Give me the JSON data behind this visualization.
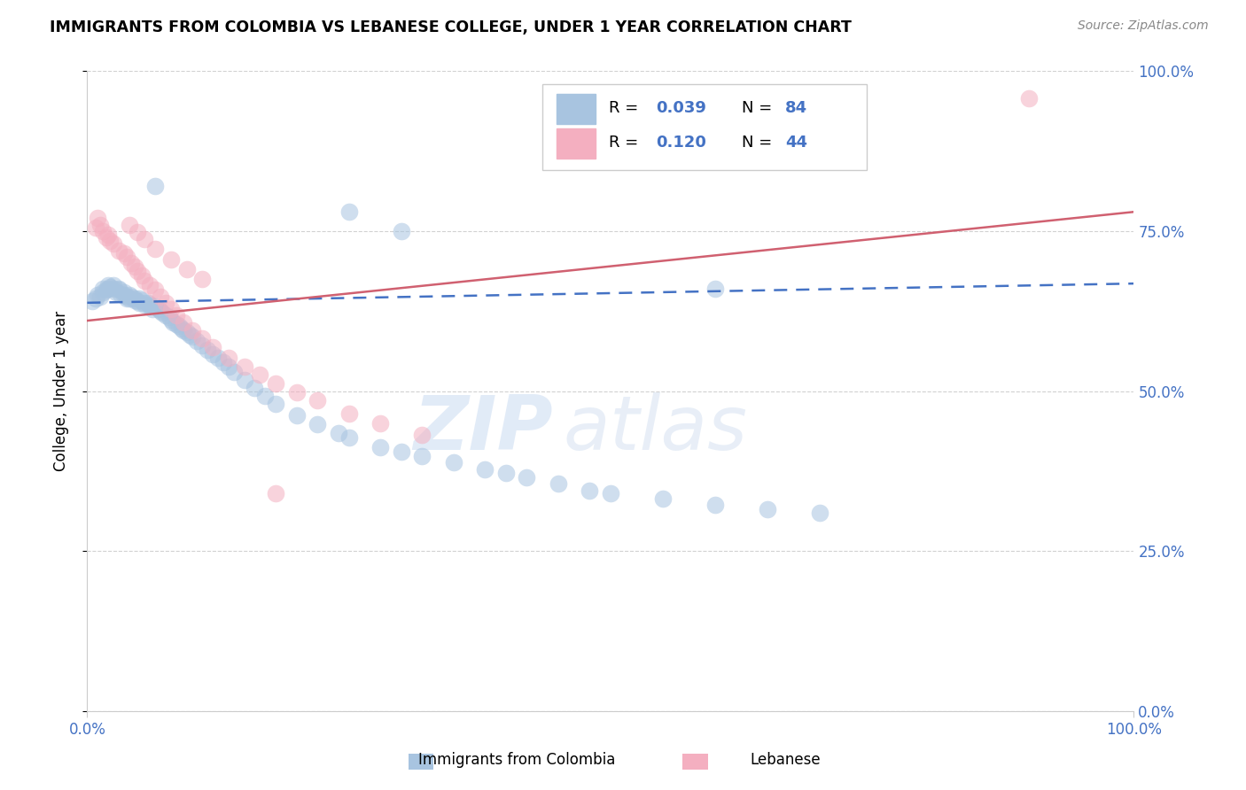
{
  "title": "IMMIGRANTS FROM COLOMBIA VS LEBANESE COLLEGE, UNDER 1 YEAR CORRELATION CHART",
  "source": "Source: ZipAtlas.com",
  "ylabel": "College, Under 1 year",
  "watermark_zip": "ZIP",
  "watermark_atlas": "atlas",
  "legend_blue_r": "0.039",
  "legend_blue_n": "84",
  "legend_pink_r": "0.120",
  "legend_pink_n": "44",
  "legend_blue_label": "Immigrants from Colombia",
  "legend_pink_label": "Lebanese",
  "blue_color": "#a8c4e0",
  "pink_color": "#f4afc0",
  "blue_line_color": "#4472c4",
  "pink_line_color": "#d06070",
  "grid_color": "#cccccc",
  "text_blue": "#4472c4",
  "blue_trend_x": [
    0.0,
    1.0
  ],
  "blue_trend_y": [
    0.638,
    0.668
  ],
  "pink_trend_x": [
    0.0,
    1.0
  ],
  "pink_trend_y": [
    0.61,
    0.78
  ],
  "ytick_vals": [
    0.0,
    0.25,
    0.5,
    0.75,
    1.0
  ],
  "ytick_labels": [
    "0.0%",
    "25.0%",
    "50.0%",
    "75.0%",
    "100.0%"
  ],
  "xtick_vals": [
    0.0,
    1.0
  ],
  "xtick_labels": [
    "0.0%",
    "100.0%"
  ],
  "blue_x": [
    0.005,
    0.008,
    0.01,
    0.012,
    0.015,
    0.015,
    0.018,
    0.02,
    0.02,
    0.022,
    0.025,
    0.025,
    0.028,
    0.03,
    0.03,
    0.032,
    0.035,
    0.035,
    0.038,
    0.038,
    0.04,
    0.04,
    0.042,
    0.045,
    0.045,
    0.048,
    0.05,
    0.05,
    0.052,
    0.055,
    0.055,
    0.058,
    0.06,
    0.06,
    0.062,
    0.065,
    0.068,
    0.07,
    0.072,
    0.075,
    0.078,
    0.08,
    0.082,
    0.085,
    0.088,
    0.09,
    0.092,
    0.095,
    0.098,
    0.1,
    0.105,
    0.11,
    0.115,
    0.12,
    0.125,
    0.13,
    0.135,
    0.14,
    0.15,
    0.16,
    0.17,
    0.18,
    0.2,
    0.22,
    0.24,
    0.25,
    0.28,
    0.3,
    0.32,
    0.35,
    0.38,
    0.4,
    0.42,
    0.45,
    0.48,
    0.5,
    0.55,
    0.6,
    0.65,
    0.7,
    0.25,
    0.3,
    0.065,
    0.6
  ],
  "blue_y": [
    0.64,
    0.645,
    0.65,
    0.648,
    0.655,
    0.66,
    0.658,
    0.66,
    0.665,
    0.662,
    0.665,
    0.66,
    0.655,
    0.66,
    0.658,
    0.652,
    0.655,
    0.65,
    0.648,
    0.645,
    0.65,
    0.645,
    0.648,
    0.645,
    0.642,
    0.64,
    0.645,
    0.638,
    0.642,
    0.638,
    0.635,
    0.638,
    0.632,
    0.635,
    0.628,
    0.632,
    0.628,
    0.625,
    0.622,
    0.618,
    0.615,
    0.612,
    0.608,
    0.605,
    0.602,
    0.598,
    0.595,
    0.592,
    0.588,
    0.585,
    0.578,
    0.572,
    0.565,
    0.558,
    0.552,
    0.545,
    0.538,
    0.53,
    0.518,
    0.505,
    0.492,
    0.48,
    0.462,
    0.448,
    0.435,
    0.428,
    0.412,
    0.405,
    0.398,
    0.388,
    0.378,
    0.372,
    0.365,
    0.355,
    0.345,
    0.34,
    0.332,
    0.322,
    0.315,
    0.31,
    0.78,
    0.75,
    0.82,
    0.66
  ],
  "pink_x": [
    0.008,
    0.01,
    0.012,
    0.015,
    0.018,
    0.02,
    0.022,
    0.025,
    0.03,
    0.035,
    0.038,
    0.042,
    0.045,
    0.048,
    0.052,
    0.055,
    0.06,
    0.065,
    0.07,
    0.075,
    0.08,
    0.085,
    0.092,
    0.1,
    0.11,
    0.12,
    0.135,
    0.15,
    0.165,
    0.18,
    0.2,
    0.22,
    0.25,
    0.28,
    0.32,
    0.04,
    0.048,
    0.055,
    0.065,
    0.08,
    0.095,
    0.11,
    0.9,
    0.18
  ],
  "pink_y": [
    0.755,
    0.77,
    0.76,
    0.75,
    0.74,
    0.745,
    0.735,
    0.73,
    0.72,
    0.715,
    0.71,
    0.7,
    0.695,
    0.688,
    0.68,
    0.672,
    0.665,
    0.658,
    0.648,
    0.638,
    0.628,
    0.618,
    0.608,
    0.595,
    0.582,
    0.568,
    0.552,
    0.538,
    0.525,
    0.512,
    0.498,
    0.485,
    0.465,
    0.45,
    0.432,
    0.76,
    0.748,
    0.738,
    0.722,
    0.705,
    0.69,
    0.675,
    0.958,
    0.34
  ]
}
